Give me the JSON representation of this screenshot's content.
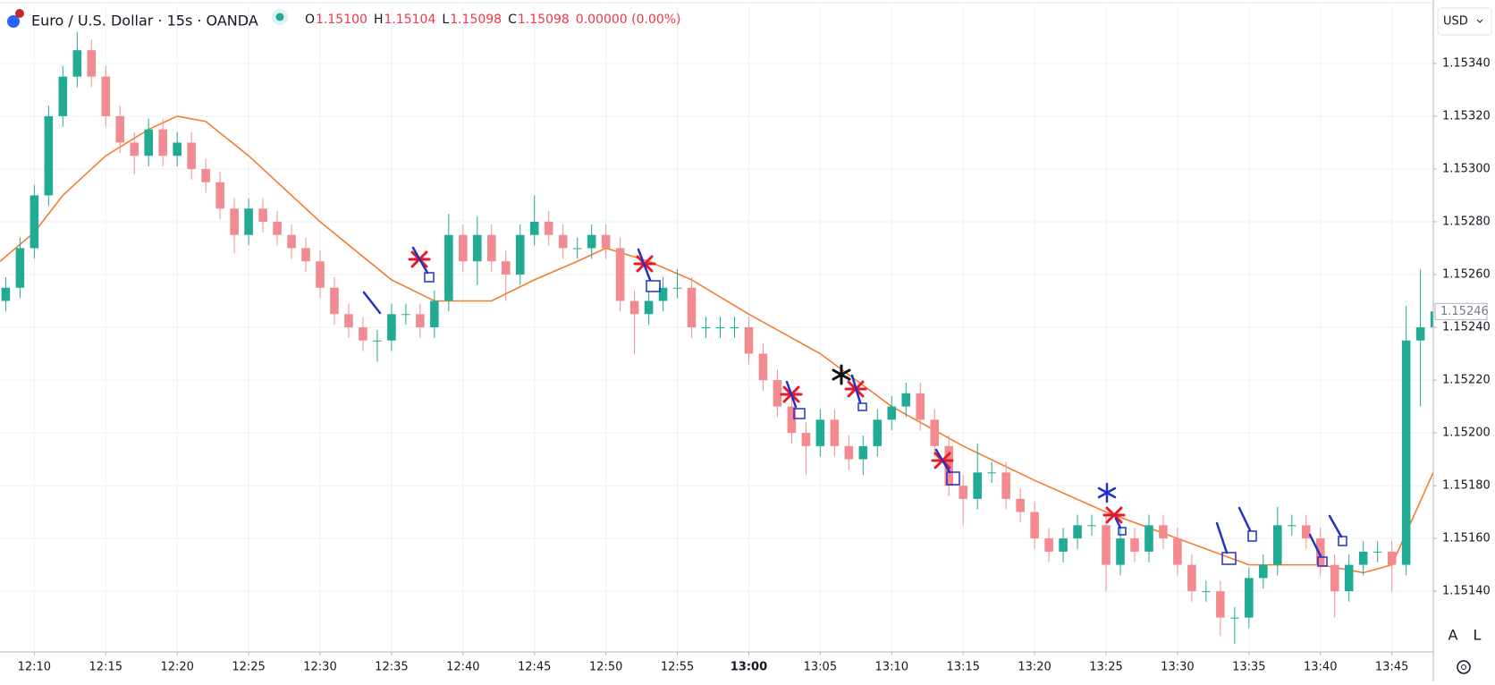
{
  "chart_data": {
    "type": "candlestick",
    "title": "Euro / U.S. Dollar · 15s · OANDA",
    "ohlc_header": [
      {
        "key": "O",
        "text": "1.15100"
      },
      {
        "key": "H",
        "text": "1.15104"
      },
      {
        "key": "L",
        "text": "1.15098"
      },
      {
        "key": "C",
        "text": "1.15098"
      }
    ],
    "change": "0.00000 (0.00%)",
    "currency": "USD",
    "buttons": [
      "A",
      "L"
    ],
    "last_price": 1.15246,
    "up_color": "#22ab94",
    "down_color": "#f28b8f",
    "grid": true,
    "xlim": [
      727.6,
      827.9
    ],
    "xticks": [
      {
        "value": 730,
        "label": "12:10"
      },
      {
        "value": 735,
        "label": "12:15"
      },
      {
        "value": 740,
        "label": "12:20"
      },
      {
        "value": 745,
        "label": "12:25"
      },
      {
        "value": 750,
        "label": "12:30"
      },
      {
        "value": 755,
        "label": "12:35"
      },
      {
        "value": 760,
        "label": "12:40"
      },
      {
        "value": 765,
        "label": "12:45"
      },
      {
        "value": 770,
        "label": "12:50"
      },
      {
        "value": 775,
        "label": "12:55"
      },
      {
        "value": 780,
        "label": "13:00"
      },
      {
        "value": 785,
        "label": "13:05"
      },
      {
        "value": 790,
        "label": "13:10"
      },
      {
        "value": 795,
        "label": "13:15"
      },
      {
        "value": 800,
        "label": "13:20"
      },
      {
        "value": 805,
        "label": "13:25"
      },
      {
        "value": 810,
        "label": "13:30"
      },
      {
        "value": 815,
        "label": "13:35"
      },
      {
        "value": 820,
        "label": "13:40"
      },
      {
        "value": 825,
        "label": "13:45"
      }
    ],
    "ylim": [
      1.15117,
      1.15362
    ],
    "yticks": [
      {
        "value": 1.1514,
        "label": "1.15140"
      },
      {
        "value": 1.1516,
        "label": "1.15160"
      },
      {
        "value": 1.1518,
        "label": "1.15180"
      },
      {
        "value": 1.152,
        "label": "1.15200"
      },
      {
        "value": 1.1522,
        "label": "1.15220"
      },
      {
        "value": 1.1524,
        "label": "1.15240"
      },
      {
        "value": 1.1526,
        "label": "1.15260"
      },
      {
        "value": 1.1528,
        "label": "1.15280"
      },
      {
        "value": 1.153,
        "label": "1.15300"
      },
      {
        "value": 1.1532,
        "label": "1.15320"
      },
      {
        "value": 1.1534,
        "label": "1.15340"
      }
    ],
    "x": [
      728,
      729,
      730,
      731,
      732,
      733,
      734,
      735,
      736,
      737,
      738,
      739,
      740,
      741,
      742,
      743,
      744,
      745,
      746,
      747,
      748,
      749,
      750,
      751,
      752,
      753,
      754,
      755,
      756,
      757,
      758,
      759,
      760,
      761,
      762,
      763,
      764,
      765,
      766,
      767,
      768,
      769,
      770,
      771,
      772,
      773,
      774,
      775,
      776,
      777,
      778,
      779,
      780,
      781,
      782,
      783,
      784,
      785,
      786,
      787,
      788,
      789,
      790,
      791,
      792,
      793,
      794,
      795,
      796,
      797,
      798,
      799,
      800,
      801,
      802,
      803,
      804,
      805,
      806,
      807,
      808,
      809,
      810,
      811,
      812,
      813,
      814,
      815,
      816,
      817,
      818,
      819,
      820,
      821,
      822,
      823,
      824,
      825,
      826,
      827,
      828
    ],
    "open": [
      1.1525,
      1.15255,
      1.1527,
      1.1529,
      1.1532,
      1.15335,
      1.15345,
      1.15335,
      1.1532,
      1.1531,
      1.15305,
      1.15315,
      1.15305,
      1.1531,
      1.153,
      1.15295,
      1.15285,
      1.15275,
      1.15285,
      1.1528,
      1.15275,
      1.1527,
      1.15265,
      1.15255,
      1.15245,
      1.1524,
      1.15235,
      1.15235,
      1.15245,
      1.15245,
      1.1524,
      1.1525,
      1.15275,
      1.15265,
      1.15275,
      1.15265,
      1.1526,
      1.15275,
      1.1528,
      1.15275,
      1.1527,
      1.1527,
      1.15275,
      1.1527,
      1.1525,
      1.15245,
      1.1525,
      1.15255,
      1.15255,
      1.1524,
      1.1524,
      1.1524,
      1.1524,
      1.1523,
      1.1522,
      1.1521,
      1.152,
      1.15195,
      1.15205,
      1.15195,
      1.1519,
      1.15195,
      1.15205,
      1.1521,
      1.15215,
      1.15205,
      1.15195,
      1.1518,
      1.15175,
      1.15185,
      1.15185,
      1.15175,
      1.1517,
      1.1516,
      1.15155,
      1.1516,
      1.15165,
      1.15165,
      1.1515,
      1.1516,
      1.15155,
      1.15165,
      1.1516,
      1.1515,
      1.1514,
      1.1514,
      1.1513,
      1.1513,
      1.15145,
      1.1515,
      1.15165,
      1.15165,
      1.1516,
      1.1515,
      1.1514,
      1.1515,
      1.15155,
      1.15155,
      1.1515,
      1.15235,
      1.1524
    ],
    "high": [
      1.15259,
      1.15274,
      1.15294,
      1.15324,
      1.15339,
      1.15352,
      1.15349,
      1.15339,
      1.15324,
      1.15314,
      1.15319,
      1.15319,
      1.15314,
      1.15314,
      1.15304,
      1.15299,
      1.15289,
      1.15289,
      1.15289,
      1.15284,
      1.15279,
      1.15274,
      1.15269,
      1.15259,
      1.15249,
      1.15244,
      1.15239,
      1.15249,
      1.15249,
      1.15249,
      1.15254,
      1.15283,
      1.15279,
      1.15282,
      1.15279,
      1.15269,
      1.15279,
      1.1529,
      1.15284,
      1.15279,
      1.15274,
      1.15279,
      1.15279,
      1.15274,
      1.15254,
      1.15254,
      1.15259,
      1.15262,
      1.15259,
      1.15244,
      1.15244,
      1.15244,
      1.15244,
      1.15234,
      1.15224,
      1.15214,
      1.15204,
      1.15209,
      1.15209,
      1.15199,
      1.15199,
      1.15209,
      1.15214,
      1.15219,
      1.15219,
      1.15209,
      1.15199,
      1.15184,
      1.15196,
      1.15189,
      1.15189,
      1.15179,
      1.15174,
      1.15164,
      1.15164,
      1.15169,
      1.15169,
      1.15169,
      1.15164,
      1.15164,
      1.15169,
      1.15169,
      1.15164,
      1.15154,
      1.15144,
      1.15144,
      1.15134,
      1.15149,
      1.15154,
      1.15172,
      1.15169,
      1.15169,
      1.15164,
      1.15154,
      1.15154,
      1.15159,
      1.15159,
      1.15159,
      1.15248,
      1.15262,
      1.1525
    ],
    "low": [
      1.15246,
      1.15251,
      1.15266,
      1.15286,
      1.15316,
      1.15331,
      1.15331,
      1.15316,
      1.15306,
      1.15298,
      1.15301,
      1.15301,
      1.15301,
      1.15296,
      1.15291,
      1.15281,
      1.15268,
      1.15271,
      1.15276,
      1.15271,
      1.15266,
      1.15261,
      1.15251,
      1.15241,
      1.15236,
      1.15231,
      1.15227,
      1.15231,
      1.15241,
      1.15236,
      1.15236,
      1.15246,
      1.15261,
      1.15256,
      1.15261,
      1.1525,
      1.15256,
      1.15271,
      1.15271,
      1.15266,
      1.15266,
      1.15266,
      1.15266,
      1.15246,
      1.1523,
      1.15241,
      1.15246,
      1.15251,
      1.15236,
      1.15236,
      1.15236,
      1.15236,
      1.15226,
      1.15216,
      1.15206,
      1.15196,
      1.15184,
      1.15191,
      1.15191,
      1.15186,
      1.15184,
      1.15191,
      1.15201,
      1.15206,
      1.15201,
      1.15191,
      1.15176,
      1.15165,
      1.15171,
      1.15181,
      1.15171,
      1.15166,
      1.15156,
      1.15151,
      1.15151,
      1.15156,
      1.15161,
      1.1514,
      1.15146,
      1.15151,
      1.15151,
      1.15156,
      1.15146,
      1.15136,
      1.15136,
      1.15123,
      1.1512,
      1.15126,
      1.15141,
      1.15146,
      1.15161,
      1.15156,
      1.15146,
      1.1513,
      1.15136,
      1.15146,
      1.15151,
      1.1514,
      1.15146,
      1.1521,
      1.15236
    ],
    "close": [
      1.15255,
      1.1527,
      1.1529,
      1.1532,
      1.15335,
      1.15345,
      1.15335,
      1.1532,
      1.1531,
      1.15305,
      1.15315,
      1.15305,
      1.1531,
      1.153,
      1.15295,
      1.15285,
      1.15275,
      1.15285,
      1.1528,
      1.15275,
      1.1527,
      1.15265,
      1.15255,
      1.15245,
      1.1524,
      1.15235,
      1.15235,
      1.15245,
      1.15245,
      1.1524,
      1.1525,
      1.15275,
      1.15265,
      1.15275,
      1.15265,
      1.1526,
      1.15275,
      1.1528,
      1.15275,
      1.1527,
      1.1527,
      1.15275,
      1.1527,
      1.1525,
      1.15245,
      1.1525,
      1.15255,
      1.15255,
      1.1524,
      1.1524,
      1.1524,
      1.1524,
      1.1523,
      1.1522,
      1.1521,
      1.152,
      1.15195,
      1.15205,
      1.15195,
      1.1519,
      1.15195,
      1.15205,
      1.1521,
      1.15215,
      1.15205,
      1.15195,
      1.1518,
      1.15175,
      1.15185,
      1.15185,
      1.15175,
      1.1517,
      1.1516,
      1.15155,
      1.1516,
      1.15165,
      1.15165,
      1.1515,
      1.1516,
      1.15155,
      1.15165,
      1.1516,
      1.1515,
      1.1514,
      1.1514,
      1.1513,
      1.1513,
      1.15145,
      1.1515,
      1.15165,
      1.15165,
      1.1516,
      1.1515,
      1.1514,
      1.1515,
      1.15155,
      1.15155,
      1.1515,
      1.15235,
      1.1524,
      1.15246
    ],
    "overlays": [
      {
        "type": "line",
        "color": "#f57c2f",
        "x": [
          727.6,
          730,
          732,
          735,
          738,
          740,
          742,
          745,
          750,
          755,
          758,
          762,
          765,
          768,
          770,
          773,
          776,
          780,
          785,
          790,
          795,
          800,
          805,
          810,
          815,
          820,
          823,
          825,
          827.9
        ],
        "values": [
          1.15265,
          1.15276,
          1.1529,
          1.15305,
          1.15315,
          1.1532,
          1.15318,
          1.15305,
          1.1528,
          1.15258,
          1.1525,
          1.1525,
          1.15258,
          1.15265,
          1.1527,
          1.15265,
          1.15258,
          1.15245,
          1.1523,
          1.1521,
          1.15195,
          1.15182,
          1.1517,
          1.1516,
          1.1515,
          1.1515,
          1.15147,
          1.1515,
          1.15185
        ]
      }
    ]
  }
}
